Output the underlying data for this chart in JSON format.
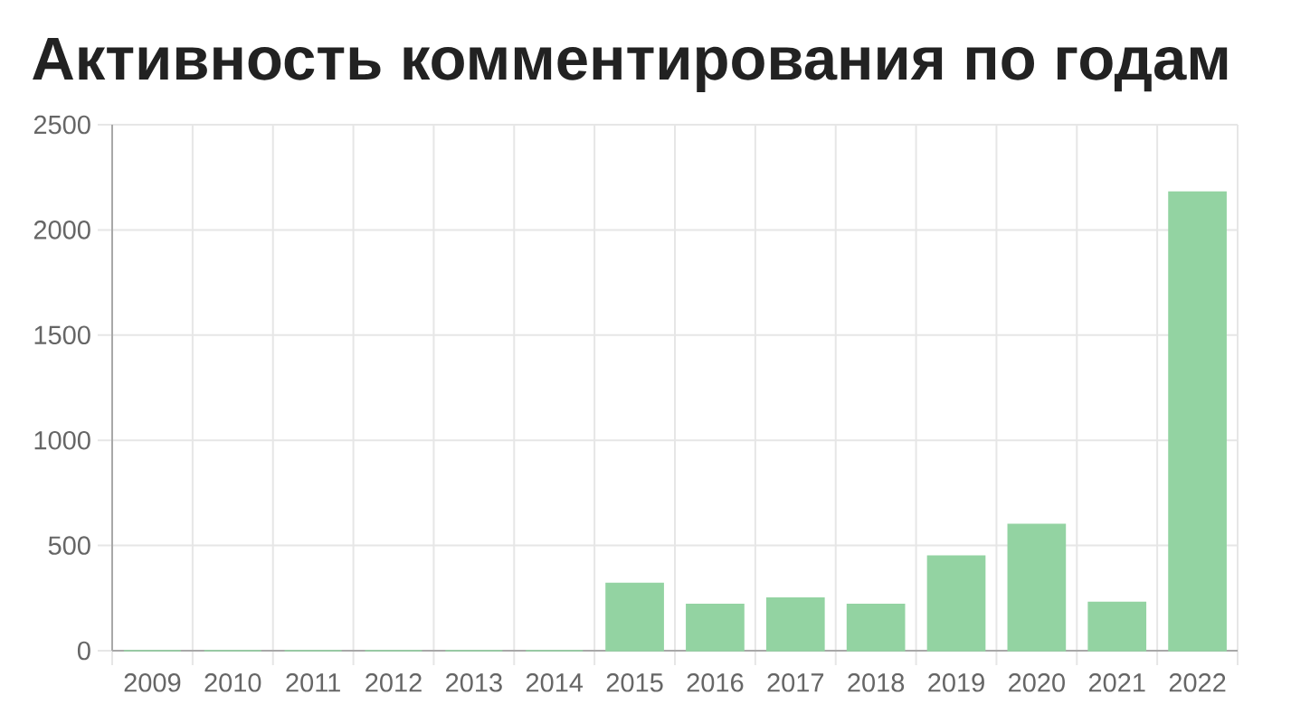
{
  "chart_data": {
    "type": "bar",
    "title": "Активность комментирования по годам",
    "categories": [
      "2009",
      "2010",
      "2011",
      "2012",
      "2013",
      "2014",
      "2015",
      "2016",
      "2017",
      "2018",
      "2019",
      "2020",
      "2021",
      "2022"
    ],
    "values": [
      0,
      0,
      0,
      0,
      0,
      0,
      320,
      220,
      250,
      220,
      450,
      600,
      230,
      2180
    ],
    "color": "#93d3a2",
    "ylim": [
      0,
      2500
    ],
    "yticks": [
      0,
      500,
      1000,
      1500,
      2000,
      2500
    ],
    "grid": true
  }
}
